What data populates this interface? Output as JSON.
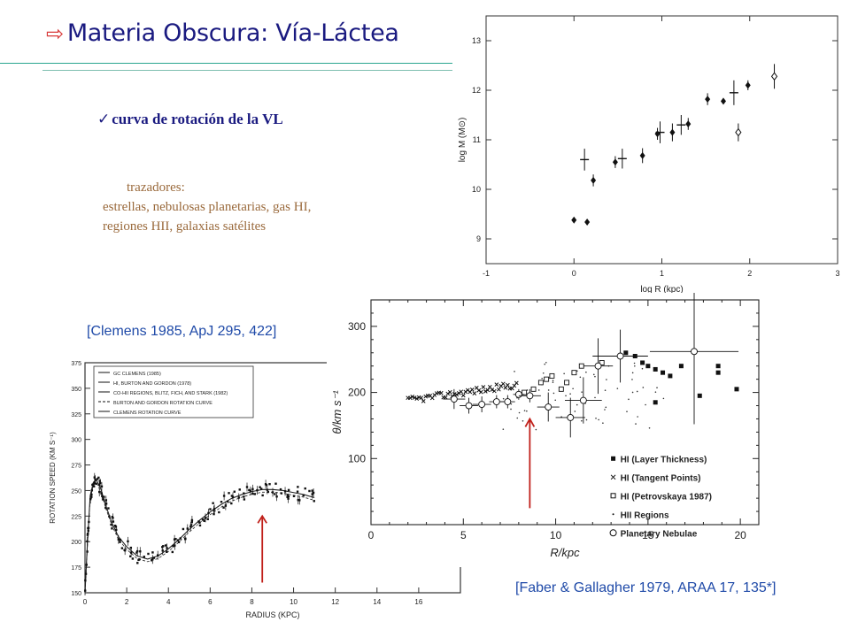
{
  "slide": {
    "title_arrow": "⇨",
    "title": "Materia Obscura: Vía-Láctea",
    "subtitle_check": "✓",
    "subtitle": "curva de rotación de la VL",
    "tracers_head": "trazadores:",
    "tracers_line1": "estrellas, nebulosas planetarias, gas HI,",
    "tracers_line2": "regiones HII, galaxias satélites",
    "ref_left": "[Clemens 1985, ApJ 295, 422]",
    "ref_right": "[Faber & Gallagher 1979, ARAA 17, 135*]"
  },
  "colors": {
    "title": "#1a1a80",
    "accent_arrow": "#d83a3a",
    "tracers": "#9a6a3c",
    "refs": "#1f4aa8",
    "rule": "#2aa58f",
    "marker_arrow": "#c0201a"
  },
  "chart_data": [
    {
      "type": "scatter",
      "id": "mass",
      "xlabel": "log R (kpc)",
      "ylabel": "log M (M⊙)",
      "xlim": [
        -1,
        3
      ],
      "ylim": [
        8.5,
        13.5
      ],
      "xticks": [
        -1,
        0,
        1,
        2,
        3
      ],
      "yticks": [
        9,
        10,
        11,
        12,
        13
      ],
      "grid": false,
      "points": [
        {
          "x": 0.0,
          "y": 9.38,
          "err": 0.05,
          "m": "filled"
        },
        {
          "x": 0.15,
          "y": 9.34,
          "err": 0.05,
          "m": "filled"
        },
        {
          "x": 0.22,
          "y": 10.18,
          "err": 0.12,
          "m": "filled"
        },
        {
          "x": 0.12,
          "y": 10.6,
          "err": 0.22,
          "m": "cross"
        },
        {
          "x": 0.47,
          "y": 10.55,
          "err": 0.12,
          "m": "filled"
        },
        {
          "x": 0.55,
          "y": 10.62,
          "err": 0.2,
          "m": "cross"
        },
        {
          "x": 0.78,
          "y": 10.68,
          "err": 0.15,
          "m": "filled"
        },
        {
          "x": 0.95,
          "y": 11.12,
          "err": 0.12,
          "m": "filled"
        },
        {
          "x": 0.98,
          "y": 11.15,
          "err": 0.22,
          "m": "cross"
        },
        {
          "x": 1.12,
          "y": 11.15,
          "err": 0.18,
          "m": "filled"
        },
        {
          "x": 1.22,
          "y": 11.3,
          "err": 0.2,
          "m": "cross"
        },
        {
          "x": 1.3,
          "y": 11.32,
          "err": 0.12,
          "m": "filled"
        },
        {
          "x": 1.52,
          "y": 11.82,
          "err": 0.12,
          "m": "filled"
        },
        {
          "x": 1.7,
          "y": 11.78,
          "err": 0.05,
          "m": "filled"
        },
        {
          "x": 1.82,
          "y": 11.95,
          "err": 0.25,
          "m": "cross"
        },
        {
          "x": 1.87,
          "y": 11.15,
          "err": 0.18,
          "m": "open"
        },
        {
          "x": 1.98,
          "y": 12.1,
          "err": 0.1,
          "m": "filled"
        },
        {
          "x": 2.28,
          "y": 12.28,
          "err": 0.25,
          "m": "open"
        }
      ]
    },
    {
      "type": "scatter",
      "id": "clemens",
      "xlabel": "RADIUS (KPC)",
      "ylabel": "ROTATION SPEED (KM S⁻¹)",
      "xlim": [
        0,
        18
      ],
      "ylim": [
        150,
        375
      ],
      "xticks": [
        0,
        2,
        4,
        6,
        8,
        10,
        12,
        14,
        16
      ],
      "yticks": [
        150,
        175,
        200,
        225,
        250,
        275,
        300,
        325,
        350,
        375
      ],
      "grid": false,
      "legend": [
        "GC CLEMENS (1985)",
        "HI, BURTON AND GORDON (1978)",
        "CO-HII REGIONS, BLITZ, FICH, AND STARK (1982)",
        "BURTON AND GORDON ROTATION CURVE",
        "CLEMENS ROTATION CURVE"
      ],
      "curve_x": [
        0,
        0.12,
        0.25,
        0.4,
        0.55,
        0.75,
        1.0,
        1.3,
        1.6,
        2.0,
        2.5,
        3.0,
        3.5,
        4.0,
        4.5,
        5.0,
        5.5,
        6.0,
        6.5,
        7.0,
        7.5,
        8.0,
        8.5,
        9.0,
        9.5,
        10.0,
        10.5,
        11.0
      ],
      "curve_y": [
        150,
        200,
        245,
        258,
        260,
        252,
        235,
        218,
        205,
        195,
        186,
        183,
        186,
        193,
        202,
        212,
        221,
        229,
        236,
        242,
        246,
        249,
        251,
        251,
        250,
        248,
        246,
        243
      ]
    },
    {
      "type": "scatter",
      "id": "faber",
      "xlabel": "R/kpc",
      "ylabel": "θ/km s⁻¹",
      "xlim": [
        0,
        21
      ],
      "ylim": [
        0,
        340
      ],
      "xticks": [
        0,
        5,
        10,
        15,
        20
      ],
      "yticks": [
        100,
        200,
        300
      ],
      "legend": [
        "HI (Layer Thickness)",
        "HI (Tangent Points)",
        "HI (Petrovskaya 1987)",
        "HII Regions",
        "Planetary Nebulae"
      ],
      "grid": false,
      "hi_squares": [
        [
          13.8,
          260
        ],
        [
          14.3,
          255
        ],
        [
          14.7,
          245
        ],
        [
          15.0,
          240
        ],
        [
          15.4,
          235
        ],
        [
          15.8,
          230
        ],
        [
          16.2,
          225
        ],
        [
          15.4,
          185
        ],
        [
          16.8,
          240
        ],
        [
          17.8,
          195
        ],
        [
          18.8,
          240
        ],
        [
          18.8,
          230
        ],
        [
          19.8,
          205
        ]
      ],
      "petrovskaya": [
        [
          8.3,
          200
        ],
        [
          8.8,
          205
        ],
        [
          9.2,
          215
        ],
        [
          9.5,
          220
        ],
        [
          9.8,
          225
        ],
        [
          10.3,
          205
        ],
        [
          10.6,
          215
        ],
        [
          11.0,
          230
        ],
        [
          11.4,
          240
        ],
        [
          12.5,
          245
        ]
      ],
      "planetary": [
        {
          "x": 4.5,
          "y": 190,
          "ex": 0.6,
          "ey": 15
        },
        {
          "x": 5.3,
          "y": 180,
          "ex": 0.5,
          "ey": 12
        },
        {
          "x": 6.0,
          "y": 182,
          "ex": 0.5,
          "ey": 12
        },
        {
          "x": 6.8,
          "y": 186,
          "ex": 0.4,
          "ey": 10
        },
        {
          "x": 7.4,
          "y": 186,
          "ex": 0.4,
          "ey": 10
        },
        {
          "x": 8.0,
          "y": 197,
          "ex": 0.3,
          "ey": 8
        },
        {
          "x": 8.6,
          "y": 195,
          "ex": 0.6,
          "ey": 10
        },
        {
          "x": 9.6,
          "y": 178,
          "ex": 0.6,
          "ey": 22
        },
        {
          "x": 10.8,
          "y": 162,
          "ex": 0.8,
          "ey": 30
        },
        {
          "x": 11.5,
          "y": 188,
          "ex": 1.0,
          "ey": 35
        },
        {
          "x": 12.3,
          "y": 240,
          "ex": 0.8,
          "ey": 42
        },
        {
          "x": 13.5,
          "y": 255,
          "ex": 1.5,
          "ey": 40
        },
        {
          "x": 17.5,
          "y": 262,
          "ex": 2.4,
          "ey": 110
        }
      ]
    }
  ]
}
